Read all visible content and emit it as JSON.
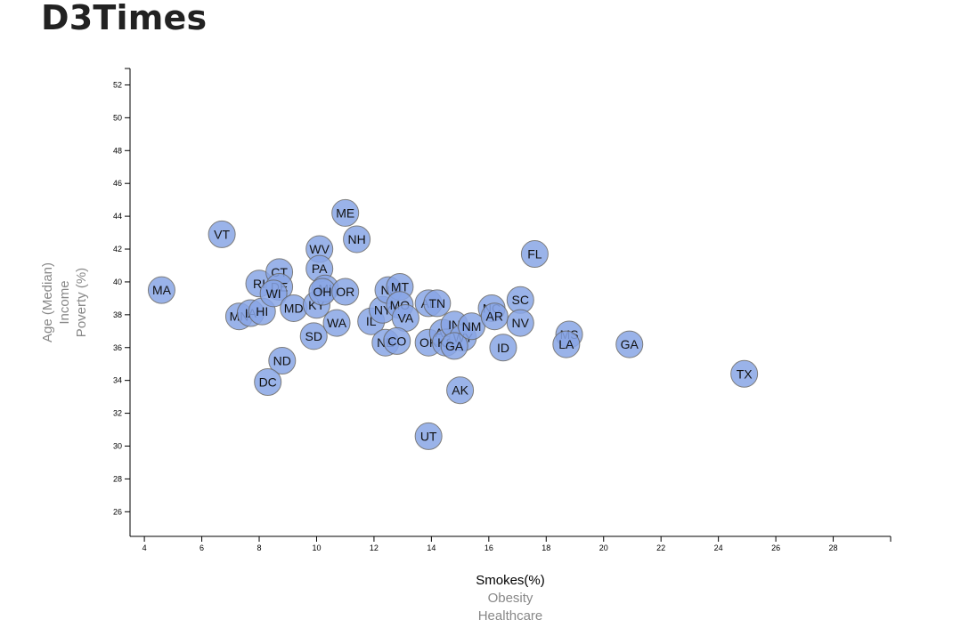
{
  "page": {
    "title": "D3Times"
  },
  "chart_data": {
    "type": "scatter",
    "xlim": [
      3.5,
      30
    ],
    "ylim": [
      24.5,
      53
    ],
    "x_ticks": [
      4,
      6,
      8,
      10,
      12,
      14,
      16,
      18,
      20,
      22,
      24,
      26,
      28
    ],
    "y_ticks": [
      26,
      28,
      30,
      32,
      34,
      36,
      38,
      40,
      42,
      44,
      46,
      48,
      50,
      52
    ],
    "x_axis_options": [
      {
        "label": "Smokes(%)",
        "active": true
      },
      {
        "label": "Obesity",
        "active": false
      },
      {
        "label": "Healthcare",
        "active": false
      }
    ],
    "y_axis_options": [
      {
        "label": "Age (Median)",
        "active": false
      },
      {
        "label": "Income",
        "active": false
      },
      {
        "label": "Poverty (%)",
        "active": false
      }
    ],
    "colors": {
      "dot_fill": "#89a6e6",
      "dot_stroke": "#666666"
    },
    "points": [
      {
        "abbr": "MA",
        "x": 4.6,
        "y": 39.5
      },
      {
        "abbr": "VT",
        "x": 6.7,
        "y": 42.9
      },
      {
        "abbr": "MN",
        "x": 7.3,
        "y": 37.9
      },
      {
        "abbr": "IA",
        "x": 7.7,
        "y": 38.1
      },
      {
        "abbr": "HI",
        "x": 8.1,
        "y": 38.2
      },
      {
        "abbr": "RI",
        "x": 8.0,
        "y": 39.9
      },
      {
        "abbr": "CT",
        "x": 8.7,
        "y": 40.6
      },
      {
        "abbr": "DE",
        "x": 8.7,
        "y": 39.7
      },
      {
        "abbr": "WI",
        "x": 8.5,
        "y": 39.3
      },
      {
        "abbr": "MD",
        "x": 9.2,
        "y": 38.4
      },
      {
        "abbr": "ND",
        "x": 8.8,
        "y": 35.2
      },
      {
        "abbr": "DC",
        "x": 8.3,
        "y": 33.9
      },
      {
        "abbr": "KY",
        "x": 10.0,
        "y": 38.6
      },
      {
        "abbr": "SD",
        "x": 9.9,
        "y": 36.7
      },
      {
        "abbr": "WV",
        "x": 10.1,
        "y": 42.0
      },
      {
        "abbr": "PA",
        "x": 10.1,
        "y": 40.8
      },
      {
        "abbr": "MI",
        "x": 10.3,
        "y": 39.6
      },
      {
        "abbr": "OH",
        "x": 10.2,
        "y": 39.4
      },
      {
        "abbr": "ME",
        "x": 11.0,
        "y": 44.2
      },
      {
        "abbr": "NH",
        "x": 11.4,
        "y": 42.6
      },
      {
        "abbr": "OR",
        "x": 11.0,
        "y": 39.4
      },
      {
        "abbr": "WA",
        "x": 10.7,
        "y": 37.5
      },
      {
        "abbr": "IL",
        "x": 11.9,
        "y": 37.6
      },
      {
        "abbr": "NY",
        "x": 12.3,
        "y": 38.3
      },
      {
        "abbr": "NJ",
        "x": 12.5,
        "y": 39.5
      },
      {
        "abbr": "MT",
        "x": 12.9,
        "y": 39.7
      },
      {
        "abbr": "MO",
        "x": 12.9,
        "y": 38.6
      },
      {
        "abbr": "VA",
        "x": 13.1,
        "y": 37.8
      },
      {
        "abbr": "NE",
        "x": 12.4,
        "y": 36.3
      },
      {
        "abbr": "CO",
        "x": 12.8,
        "y": 36.4
      },
      {
        "abbr": "AL",
        "x": 13.9,
        "y": 38.7
      },
      {
        "abbr": "TN",
        "x": 14.2,
        "y": 38.7
      },
      {
        "abbr": "OK",
        "x": 13.9,
        "y": 36.3
      },
      {
        "abbr": "AZ",
        "x": 14.4,
        "y": 36.9
      },
      {
        "abbr": "KS",
        "x": 14.5,
        "y": 36.3
      },
      {
        "abbr": "IN",
        "x": 14.8,
        "y": 37.4
      },
      {
        "abbr": "WY",
        "x": 15.1,
        "y": 36.6
      },
      {
        "abbr": "GA",
        "x": 14.8,
        "y": 36.1
      },
      {
        "abbr": "NM",
        "x": 15.4,
        "y": 37.3
      },
      {
        "abbr": "UT",
        "x": 13.9,
        "y": 30.6
      },
      {
        "abbr": "AK",
        "x": 15.0,
        "y": 33.4
      },
      {
        "abbr": "NC",
        "x": 16.1,
        "y": 38.4
      },
      {
        "abbr": "AR",
        "x": 16.2,
        "y": 37.9
      },
      {
        "abbr": "ID",
        "x": 16.5,
        "y": 36.0
      },
      {
        "abbr": "SC",
        "x": 17.1,
        "y": 38.9
      },
      {
        "abbr": "NV",
        "x": 17.1,
        "y": 37.5
      },
      {
        "abbr": "FL",
        "x": 17.6,
        "y": 41.7
      },
      {
        "abbr": "MS",
        "x": 18.8,
        "y": 36.8
      },
      {
        "abbr": "LA",
        "x": 18.7,
        "y": 36.2
      },
      {
        "abbr": "GA",
        "x": 20.9,
        "y": 36.2
      },
      {
        "abbr": "TX",
        "x": 24.9,
        "y": 34.4
      }
    ]
  }
}
